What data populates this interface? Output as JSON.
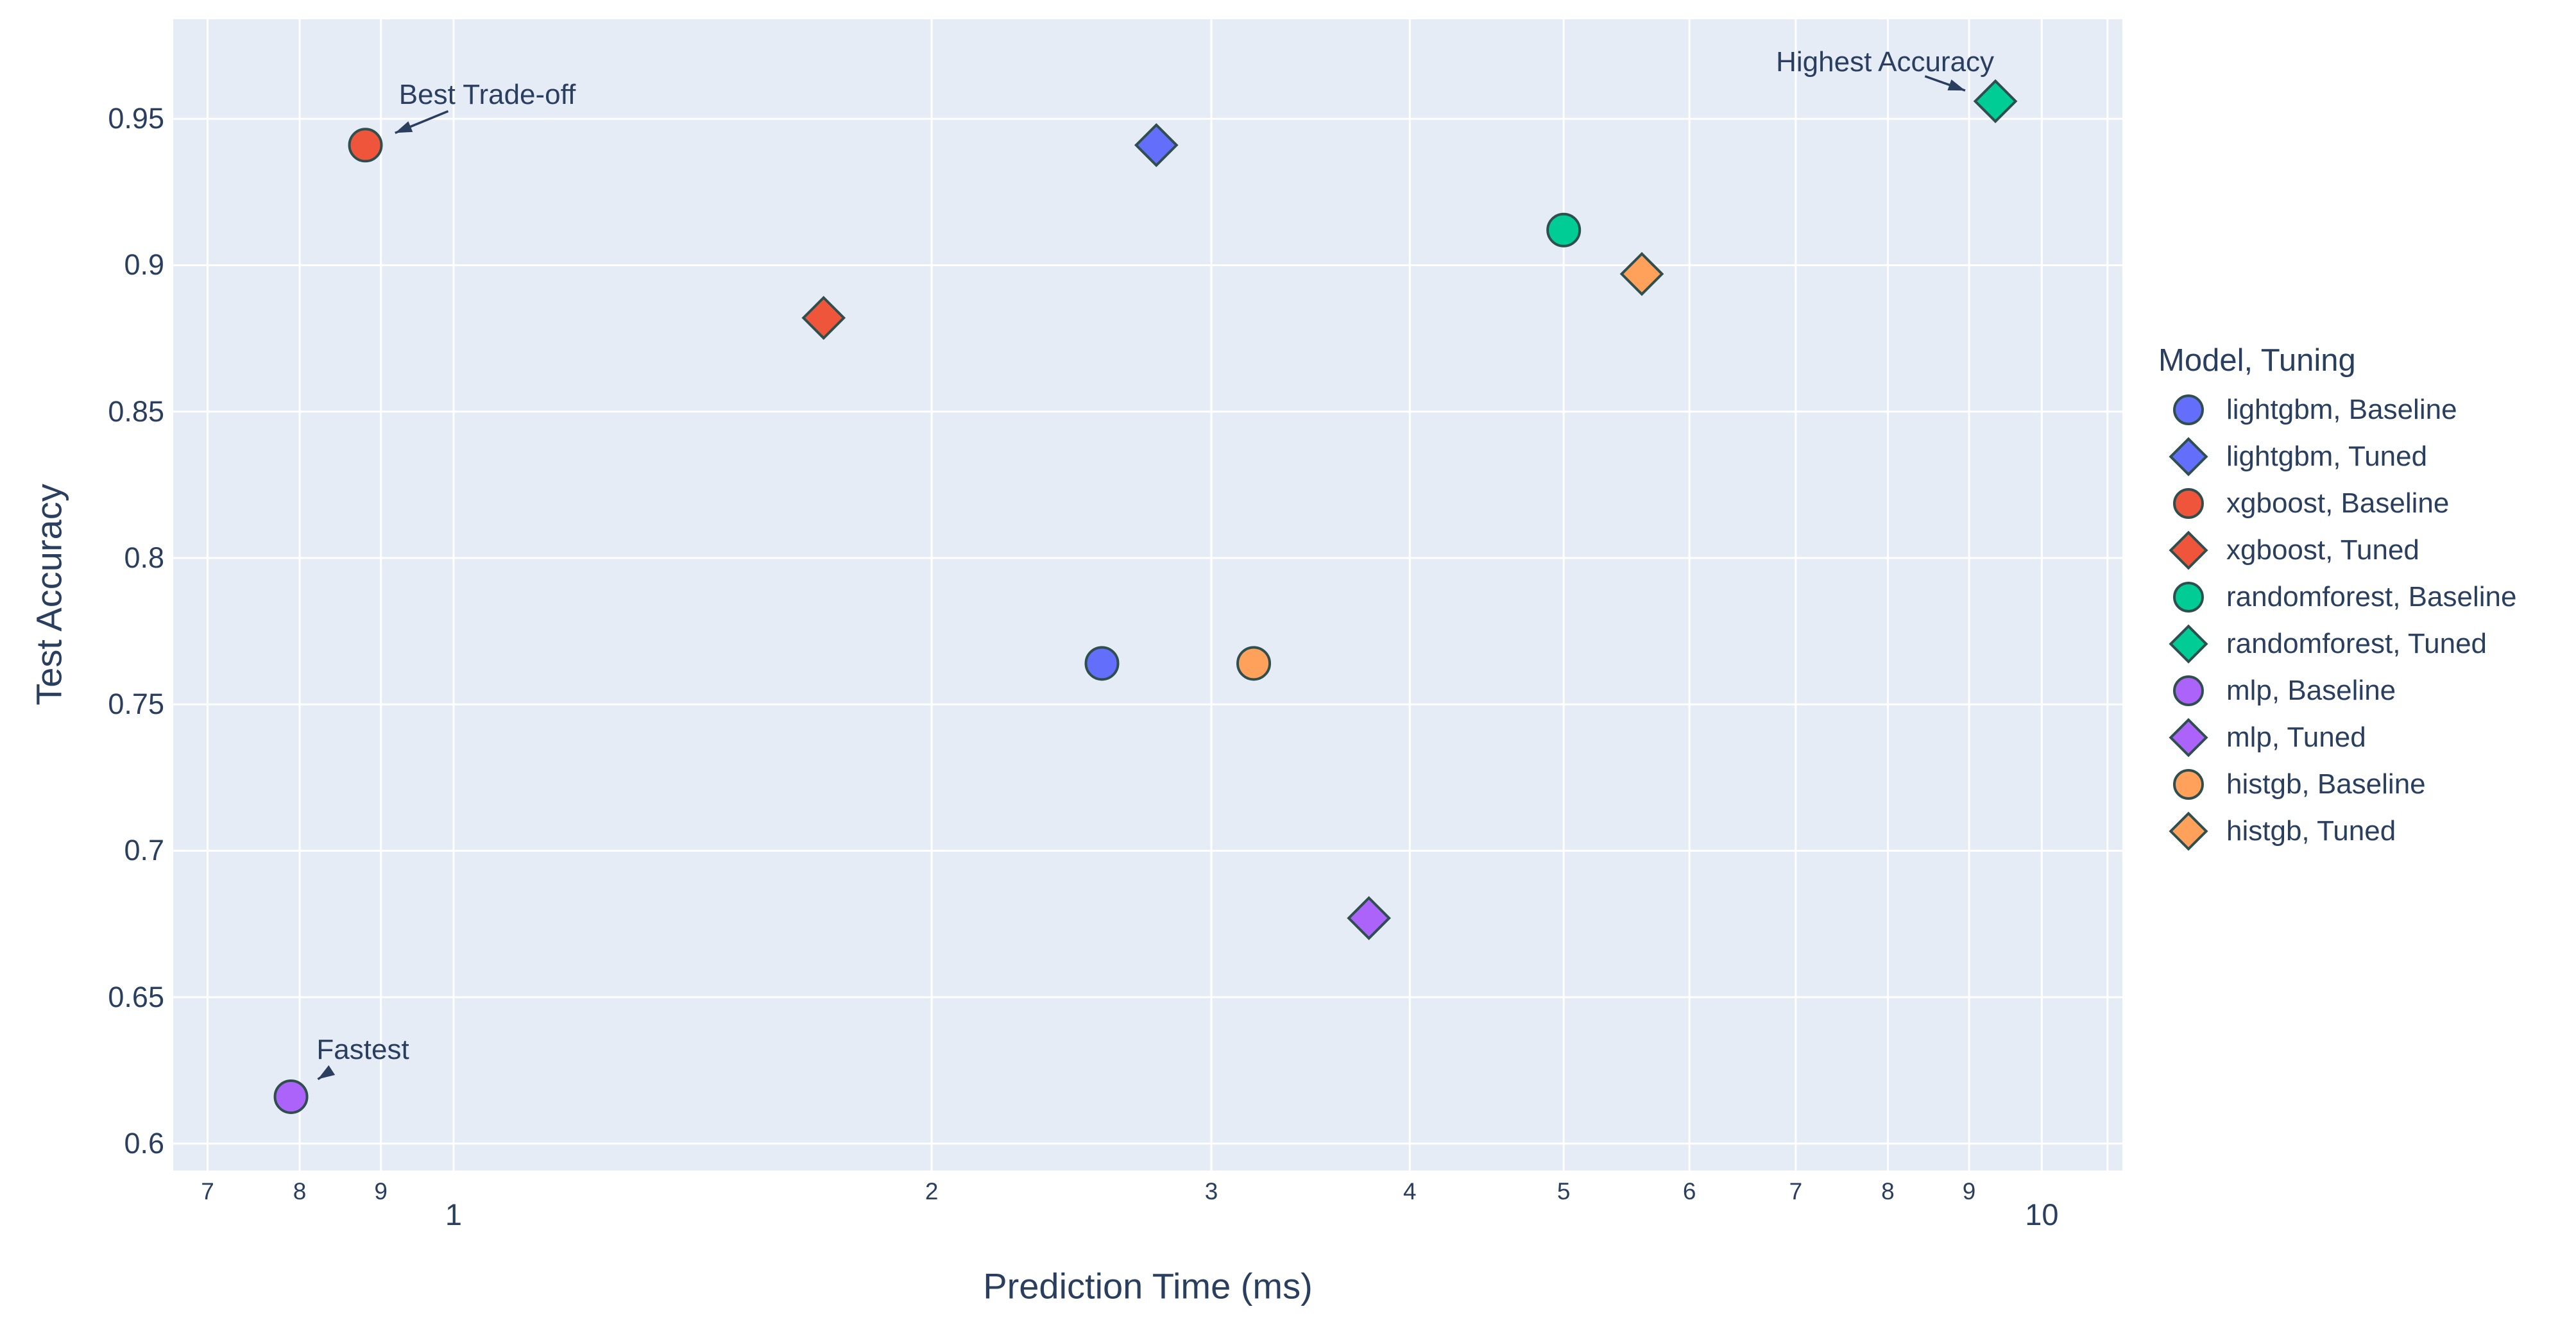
{
  "figure": {
    "background_color": "#ffffff",
    "plot_background_color": "#E5ECF6",
    "grid_color": "#ffffff",
    "text_color": "#2a3f5f",
    "marker_outline_color": "#2F4F4F",
    "annotation_arrow_color": "#2a3f5f"
  },
  "chart_data": {
    "type": "scatter",
    "title": "",
    "xlabel": "Prediction Time (ms)",
    "ylabel": "Test Accuracy",
    "x_scale": "log",
    "x_range": [
      0.666,
      11.24
    ],
    "y_range": [
      0.5908,
      0.984
    ],
    "grid": true,
    "legend_position": "right",
    "legend_title": "Model, Tuning",
    "x_ticks_minor": [
      {
        "v": 0.7,
        "label": "7"
      },
      {
        "v": 0.8,
        "label": "8"
      },
      {
        "v": 0.9,
        "label": "9"
      },
      {
        "v": 2,
        "label": "2"
      },
      {
        "v": 3,
        "label": "3"
      },
      {
        "v": 4,
        "label": "4"
      },
      {
        "v": 5,
        "label": "5"
      },
      {
        "v": 6,
        "label": "6"
      },
      {
        "v": 7,
        "label": "7"
      },
      {
        "v": 8,
        "label": "8"
      },
      {
        "v": 9,
        "label": "9"
      }
    ],
    "x_ticks_major": [
      {
        "v": 1,
        "label": "1"
      },
      {
        "v": 10,
        "label": "10"
      }
    ],
    "x_grid_extra": [
      11
    ],
    "y_ticks": [
      {
        "v": 0.6,
        "label": "0.6"
      },
      {
        "v": 0.65,
        "label": "0.65"
      },
      {
        "v": 0.7,
        "label": "0.7"
      },
      {
        "v": 0.75,
        "label": "0.75"
      },
      {
        "v": 0.8,
        "label": "0.8"
      },
      {
        "v": 0.85,
        "label": "0.85"
      },
      {
        "v": 0.9,
        "label": "0.9"
      },
      {
        "v": 0.95,
        "label": "0.95"
      }
    ],
    "series": [
      {
        "name": "lightgbm, Baseline",
        "model": "lightgbm",
        "tuning": "Baseline",
        "symbol": "circle",
        "color": "#636EFA",
        "x": 2.56,
        "y": 0.764
      },
      {
        "name": "lightgbm, Tuned",
        "model": "lightgbm",
        "tuning": "Tuned",
        "symbol": "diamond",
        "color": "#636EFA",
        "x": 2.77,
        "y": 0.941
      },
      {
        "name": "xgboost, Baseline",
        "model": "xgboost",
        "tuning": "Baseline",
        "symbol": "circle",
        "color": "#EF553B",
        "x": 0.88,
        "y": 0.941
      },
      {
        "name": "xgboost, Tuned",
        "model": "xgboost",
        "tuning": "Tuned",
        "symbol": "diamond",
        "color": "#EF553B",
        "x": 1.71,
        "y": 0.882
      },
      {
        "name": "randomforest, Baseline",
        "model": "randomforest",
        "tuning": "Baseline",
        "symbol": "circle",
        "color": "#00CC96",
        "x": 5.0,
        "y": 0.912
      },
      {
        "name": "randomforest, Tuned",
        "model": "randomforest",
        "tuning": "Tuned",
        "symbol": "diamond",
        "color": "#00CC96",
        "x": 9.35,
        "y": 0.956
      },
      {
        "name": "mlp, Baseline",
        "model": "mlp",
        "tuning": "Baseline",
        "symbol": "circle",
        "color": "#AB63FA",
        "x": 0.79,
        "y": 0.616
      },
      {
        "name": "mlp, Tuned",
        "model": "mlp",
        "tuning": "Tuned",
        "symbol": "diamond",
        "color": "#AB63FA",
        "x": 3.77,
        "y": 0.677
      },
      {
        "name": "histgb, Baseline",
        "model": "histgb",
        "tuning": "Baseline",
        "symbol": "circle",
        "color": "#FFA15A",
        "x": 3.19,
        "y": 0.764
      },
      {
        "name": "histgb, Tuned",
        "model": "histgb",
        "tuning": "Tuned",
        "symbol": "diamond",
        "color": "#FFA15A",
        "x": 5.6,
        "y": 0.897
      }
    ],
    "annotations": [
      {
        "text": "Best Trade-off",
        "x": 0.88,
        "y": 0.941,
        "text_dx": 190,
        "text_dy": -78
      },
      {
        "text": "Highest Accuracy",
        "x": 9.35,
        "y": 0.956,
        "text_dx": -172,
        "text_dy": -61
      },
      {
        "text": "Fastest",
        "x": 0.79,
        "y": 0.616,
        "text_dx": 112,
        "text_dy": -73
      }
    ]
  }
}
